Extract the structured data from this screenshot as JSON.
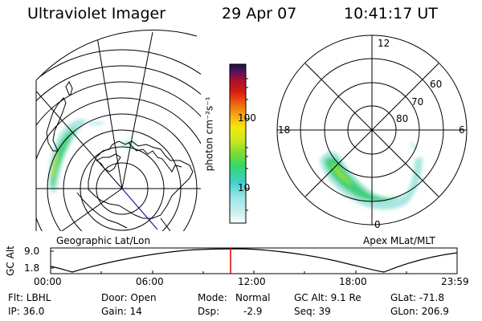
{
  "header": {
    "instrument": "Ultraviolet Imager",
    "date": "29 Apr 07",
    "time": "10:41:17 UT"
  },
  "colorbar": {
    "unit_label": "photon cm⁻²s⁻¹",
    "ticks": [
      "100",
      "10"
    ]
  },
  "left_map": {
    "caption": "Geographic Lat/Lon"
  },
  "right_map": {
    "caption": "Apex MLat/MLT",
    "mlt_labels": [
      "12",
      "18",
      "6",
      "0"
    ],
    "lat_labels": [
      "60",
      "70",
      "80"
    ]
  },
  "altitude_plot": {
    "ylabel": "GC Alt",
    "yticks": [
      "9.0",
      "1.8"
    ],
    "xticks": [
      "00:00",
      "06:00",
      "12:00",
      "18:00",
      "23:59"
    ],
    "marker_time": "10:41:17"
  },
  "status": {
    "col1": [
      "Flt: LBHL",
      "IP: 36.0"
    ],
    "col2": [
      "Door: Open",
      "Gain: 14"
    ],
    "col3_keys": [
      "Mode:",
      "Dsp:"
    ],
    "col3_vals": [
      "Normal",
      "-2.9"
    ],
    "col4": [
      "GC Alt: 9.1 Re",
      "Seq: 39"
    ],
    "col5": [
      "GLat: -71.8",
      "GLon: 206.9"
    ]
  },
  "colors": {
    "marker": "#dd0000",
    "grid": "#000000",
    "track": "#1a1aa0"
  }
}
